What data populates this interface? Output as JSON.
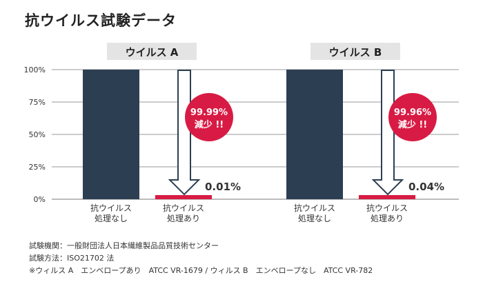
{
  "title": "抗ウイルス試験データ",
  "chart_data": {
    "type": "bar",
    "ylim": [
      0,
      100
    ],
    "yticks": [
      "0%",
      "25%",
      "50%",
      "75%",
      "100%"
    ],
    "ytick_values": [
      0,
      25,
      50,
      75,
      100
    ],
    "grid": true,
    "groups": [
      {
        "name": "ウイルス A",
        "categories": [
          [
            "抗ウイルス",
            "処理なし"
          ],
          [
            "抗ウイルス",
            "処理あり"
          ]
        ],
        "values": [
          100,
          0.01
        ],
        "value_label": "0.01%",
        "badge": [
          "99.99%",
          "減少 !!"
        ]
      },
      {
        "name": "ウイルス B",
        "categories": [
          [
            "抗ウイルス",
            "処理なし"
          ],
          [
            "抗ウイルス",
            "処理あり"
          ]
        ],
        "values": [
          100,
          0.04
        ],
        "value_label": "0.04%",
        "badge": [
          "99.96%",
          "減少 !!"
        ]
      }
    ],
    "colors": {
      "untreated": "#2c3e52",
      "treated": "#d81b44",
      "badge": "#d81b44",
      "group_label_bg": "#e4e4e4"
    }
  },
  "notes": [
    "試験機関：一般財団法人日本繊維製品品質技術センター",
    "試験方法：ISO21702 法",
    "※ウィルス A　エンベロープあり　ATCC VR-1679 / ウィルス B　エンベロープなし　ATCC VR-782"
  ]
}
